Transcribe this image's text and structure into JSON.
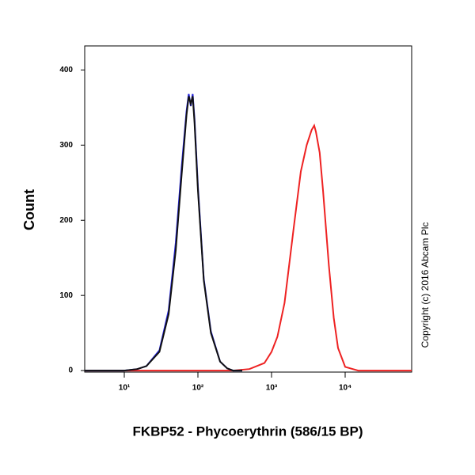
{
  "chart_data": {
    "type": "line",
    "x_label": "FKBP52 - Phycoerythrin (586/15 BP)",
    "y_label": "Count",
    "copyright": "Copyright (c) 2016 Abcam Plc",
    "log_x": true,
    "xlim": [
      2.9,
      80000
    ],
    "xticks": [
      {
        "value": 10,
        "label": "10¹"
      },
      {
        "value": 100,
        "label": "10²"
      },
      {
        "value": 1000,
        "label": "10³"
      },
      {
        "value": 10000,
        "label": "10⁴"
      }
    ],
    "ylim": [
      -2,
      432
    ],
    "yticks": [
      0,
      100,
      200,
      300,
      400
    ],
    "series": [
      {
        "color": "#ee2222",
        "x": [
          2.9,
          300,
          500,
          800,
          1000,
          1200,
          1500,
          2000,
          2500,
          3000,
          3500,
          3800,
          4000,
          4500,
          5000,
          6000,
          7000,
          8000,
          10000,
          15000,
          80000
        ],
        "values": [
          0,
          0,
          2,
          10,
          25,
          45,
          90,
          190,
          265,
          300,
          320,
          326,
          318,
          290,
          240,
          140,
          70,
          30,
          5,
          0,
          0
        ]
      },
      {
        "color": "#2222dd",
        "x": [
          2.9,
          10,
          15,
          20,
          30,
          40,
          50,
          60,
          70,
          75,
          80,
          85,
          90,
          100,
          120,
          150,
          200,
          250,
          300,
          400
        ],
        "values": [
          0,
          0,
          2,
          6,
          27,
          80,
          170,
          270,
          345,
          368,
          352,
          368,
          335,
          245,
          122,
          52,
          12,
          3,
          0,
          0
        ]
      },
      {
        "color": "#111111",
        "x": [
          2.9,
          10,
          15,
          20,
          30,
          40,
          50,
          60,
          70,
          75,
          80,
          85,
          90,
          100,
          120,
          150,
          200,
          250,
          300,
          400
        ],
        "values": [
          0,
          0,
          2,
          6,
          25,
          75,
          160,
          260,
          340,
          365,
          355,
          365,
          330,
          240,
          120,
          50,
          12,
          3,
          0,
          0
        ]
      }
    ]
  }
}
